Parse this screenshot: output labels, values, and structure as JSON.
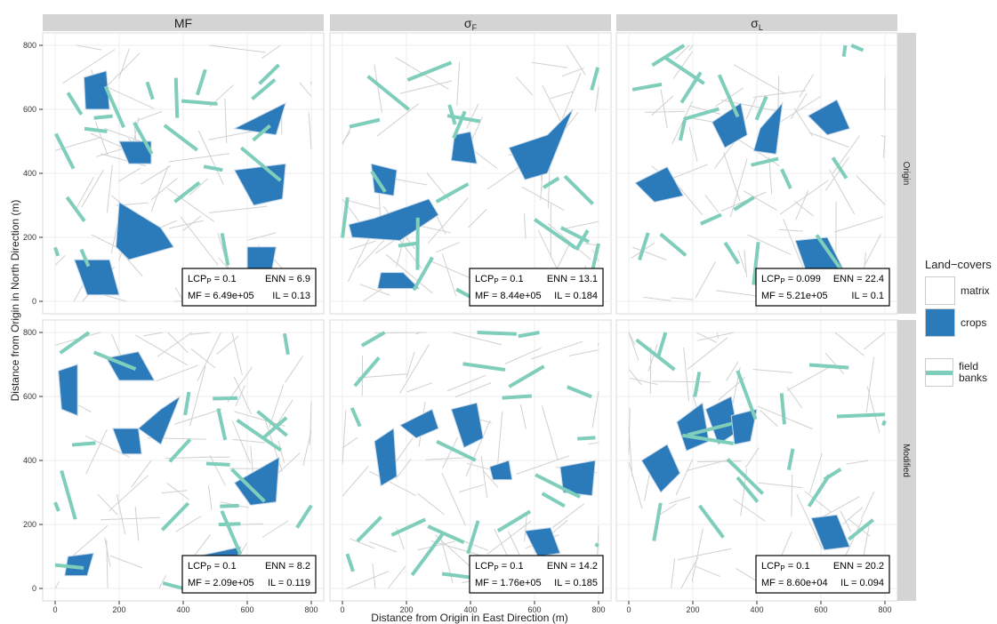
{
  "chart_data": {
    "type": "map",
    "x_axis": {
      "label": "Distance from Origin in East Direction (m)",
      "ticks": [
        "0",
        "200",
        "400",
        "600",
        "800"
      ],
      "range": [
        0,
        800
      ]
    },
    "y_axis": {
      "label": "Distance from Origin in North Direction (m)",
      "ticks": [
        "0",
        "200",
        "400",
        "600",
        "800"
      ],
      "range": [
        0,
        800
      ]
    },
    "columns": [
      "MF",
      "σF",
      "σL"
    ],
    "rows": [
      "Origin",
      "Modified"
    ],
    "legend": {
      "title": "Land−covers",
      "items": [
        {
          "label": "matrix",
          "kind": "fill",
          "color": "#ffffff"
        },
        {
          "label": "crops",
          "kind": "fill",
          "color": "#2b7bba"
        },
        {
          "label": "field banks",
          "kind": "line",
          "color": "#7fcdbb"
        }
      ]
    },
    "colors": {
      "matrix": "#ffffff",
      "crops": "#2b7bba",
      "field_banks": "#7fcdbb",
      "edges": "#d0d0d0",
      "strip": "#d4d4d4"
    },
    "panels": [
      {
        "row": "Origin",
        "col": "MF",
        "stats": {
          "LCPP": "0.1",
          "ENN": "6.9",
          "MF": "6.49e+05",
          "IL": "0.13"
        }
      },
      {
        "row": "Origin",
        "col": "σF",
        "stats": {
          "LCPP": "0.1",
          "ENN": "13.1",
          "MF": "8.44e+05",
          "IL": "0.184"
        }
      },
      {
        "row": "Origin",
        "col": "σL",
        "stats": {
          "LCPP": "0.099",
          "ENN": "22.4",
          "MF": "5.21e+05",
          "IL": "0.1"
        }
      },
      {
        "row": "Modified",
        "col": "MF",
        "stats": {
          "LCPP": "0.1",
          "ENN": "8.2",
          "MF": "2.09e+05",
          "IL": "0.119"
        }
      },
      {
        "row": "Modified",
        "col": "σF",
        "stats": {
          "LCPP": "0.1",
          "ENN": "14.2",
          "MF": "1.76e+05",
          "IL": "0.185"
        }
      },
      {
        "row": "Modified",
        "col": "σL",
        "stats": {
          "LCPP": "0.1",
          "ENN": "20.2",
          "MF": "8.60e+04",
          "IL": "0.094"
        }
      }
    ]
  }
}
